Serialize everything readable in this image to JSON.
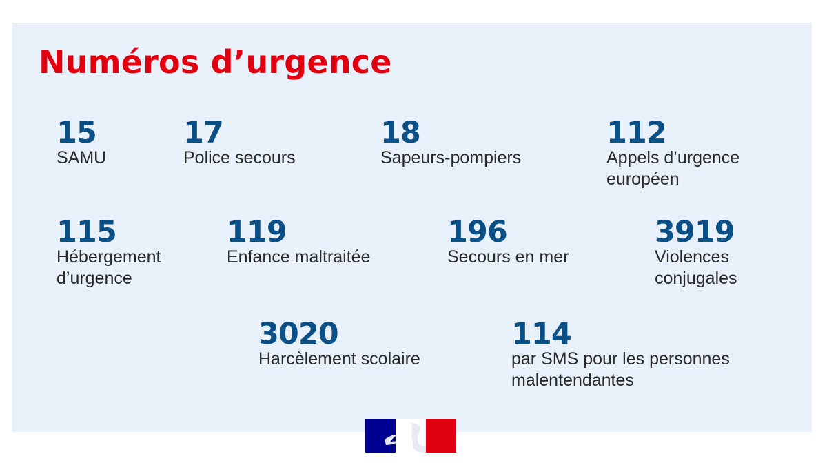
{
  "title": "Numéros d’urgence",
  "numbers": [
    {
      "number": "15",
      "label": "SAMU"
    },
    {
      "number": "17",
      "label": "Police secours"
    },
    {
      "number": "18",
      "label": "Sapeurs-pompiers"
    },
    {
      "number": "112",
      "label": "Appels d’urgence européen"
    },
    {
      "number": "115",
      "label": "Hébergement d’urgence"
    },
    {
      "number": "119",
      "label": "Enfance maltraitée"
    },
    {
      "number": "196",
      "label": "Secours en mer"
    },
    {
      "number": "3919",
      "label": "Violences conjugales"
    },
    {
      "number": "3020",
      "label": "Harcèlement scolaire"
    },
    {
      "number": "114",
      "label": "par SMS pour les personnes malentendantes"
    }
  ],
  "colors": {
    "title": "#e1000f",
    "numbers": "#0a4f86",
    "panel_background": "#e8f1f9",
    "flag_blue": "#000091",
    "flag_red": "#e1000f"
  },
  "logo": "marianne-republique-francaise-logo"
}
